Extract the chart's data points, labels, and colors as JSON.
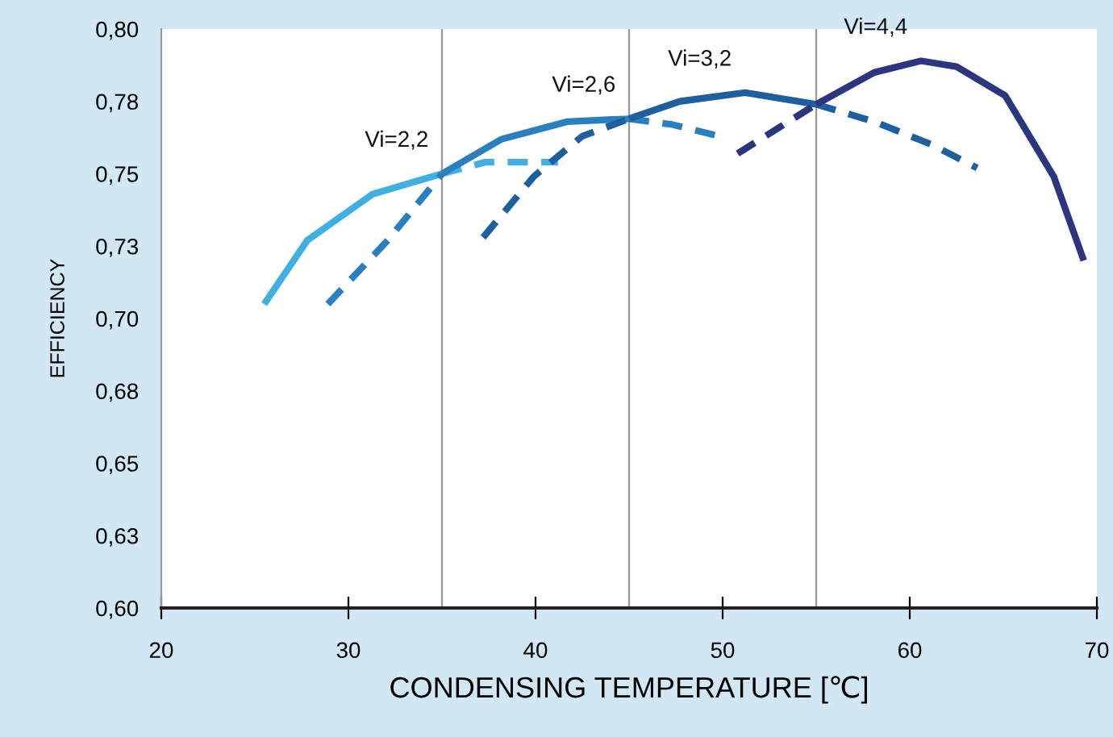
{
  "chart_data": {
    "type": "line",
    "xlabel": "CONDENSING TEMPERATURE [℃]",
    "ylabel": "EFFICIENCY",
    "xlim": [
      20,
      70
    ],
    "xticks": [
      20,
      30,
      40,
      50,
      60,
      70
    ],
    "ylim": [
      0.6,
      0.8
    ],
    "yticks": [
      {
        "value": 0.6,
        "label": "0,60"
      },
      {
        "value": 0.625,
        "label": "0,63"
      },
      {
        "value": 0.65,
        "label": "0,65"
      },
      {
        "value": 0.675,
        "label": "0,68"
      },
      {
        "value": 0.7,
        "label": "0,70"
      },
      {
        "value": 0.725,
        "label": "0,73"
      },
      {
        "value": 0.75,
        "label": "0,75"
      },
      {
        "value": 0.775,
        "label": "0,78"
      },
      {
        "value": 0.8,
        "label": "0,80"
      }
    ],
    "grid": false,
    "marker": "none",
    "series": [
      {
        "name": "Vi=2,2",
        "color": "#3fb0e2",
        "line_style": "solid",
        "x": [
          25.5,
          27.8,
          31.3,
          35
        ],
        "values": [
          0.705,
          0.727,
          0.743,
          0.75
        ]
      },
      {
        "color": "#3fb0e2",
        "line_style": "dashed",
        "x": [
          35,
          37.3,
          41.2
        ],
        "values": [
          0.75,
          0.754,
          0.754
        ]
      },
      {
        "color": "#2a7fc0",
        "line_style": "dashed",
        "x": [
          28.9,
          32.1,
          35
        ],
        "values": [
          0.705,
          0.727,
          0.75
        ]
      },
      {
        "name": "Vi=2,6",
        "color": "#2a7fc0",
        "line_style": "solid",
        "x": [
          35,
          38.2,
          41.7,
          45
        ],
        "values": [
          0.75,
          0.762,
          0.768,
          0.769
        ]
      },
      {
        "color": "#2a7fc0",
        "line_style": "dashed",
        "x": [
          45,
          47.3,
          49.8
        ],
        "values": [
          0.769,
          0.767,
          0.763
        ]
      },
      {
        "color": "#1e5fa0",
        "line_style": "dashed",
        "x": [
          37.2,
          39.9,
          42.5,
          45
        ],
        "values": [
          0.728,
          0.749,
          0.763,
          0.769
        ]
      },
      {
        "name": "Vi=3,2",
        "color": "#1e5fa0",
        "line_style": "solid",
        "x": [
          45,
          47.7,
          51.2,
          55
        ],
        "values": [
          0.769,
          0.775,
          0.778,
          0.774
        ]
      },
      {
        "color": "#1e5fa0",
        "line_style": "dashed",
        "x": [
          55,
          58.1,
          61.2,
          63.6
        ],
        "values": [
          0.774,
          0.768,
          0.76,
          0.752
        ]
      },
      {
        "color": "#2b3580",
        "line_style": "dashed",
        "x": [
          50.8,
          55
        ],
        "values": [
          0.757,
          0.774
        ]
      },
      {
        "name": "Vi=4,4",
        "color": "#2b3580",
        "line_style": "solid",
        "x": [
          55,
          58.1,
          60.6,
          62.5,
          65.1,
          67.7,
          69.3
        ],
        "values": [
          0.774,
          0.785,
          0.789,
          0.787,
          0.777,
          0.749,
          0.72
        ]
      }
    ],
    "ref_lines": [
      {
        "axis": "x",
        "value": 35,
        "label": null,
        "color": "#999999"
      },
      {
        "axis": "x",
        "value": 45,
        "label": null,
        "color": "#999999"
      },
      {
        "axis": "x",
        "value": 55,
        "label": null,
        "color": "#999999"
      }
    ]
  }
}
